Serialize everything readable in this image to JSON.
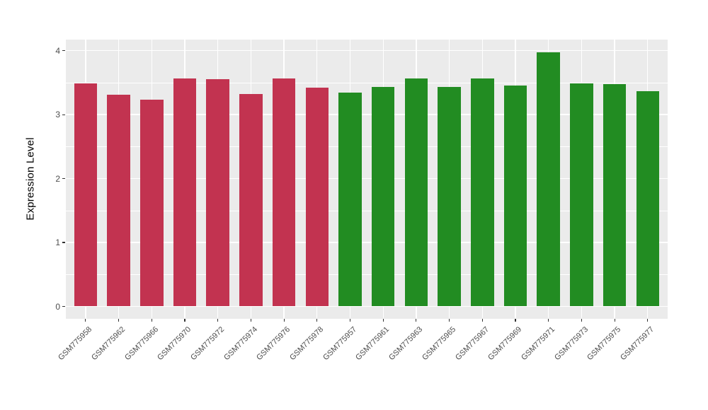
{
  "chart_data": {
    "type": "bar",
    "title": "",
    "xlabel": "",
    "ylabel": "Expression Level",
    "categories": [
      "GSM775958",
      "GSM775962",
      "GSM775966",
      "GSM775970",
      "GSM775972",
      "GSM775974",
      "GSM775976",
      "GSM775978",
      "GSM775957",
      "GSM775961",
      "GSM775963",
      "GSM775965",
      "GSM775967",
      "GSM775969",
      "GSM775971",
      "GSM775973",
      "GSM775975",
      "GSM775977"
    ],
    "values": [
      3.49,
      3.31,
      3.23,
      3.57,
      3.55,
      3.32,
      3.57,
      3.42,
      3.34,
      3.43,
      3.56,
      3.43,
      3.56,
      3.45,
      3.97,
      3.49,
      3.48,
      3.37
    ],
    "bar_colors": [
      "#C23350",
      "#C23350",
      "#C23350",
      "#C23350",
      "#C23350",
      "#C23350",
      "#C23350",
      "#C23350",
      "#228C22",
      "#228C22",
      "#228C22",
      "#228C22",
      "#228C22",
      "#228C22",
      "#228C22",
      "#228C22",
      "#228C22",
      "#228C22"
    ],
    "groups": [
      {
        "name": "red-group",
        "color": "#C23350",
        "count": 8
      },
      {
        "name": "green-group",
        "color": "#228C22",
        "count": 10
      }
    ],
    "yticks": [
      0,
      1,
      2,
      3,
      4
    ],
    "yticks_minor": [
      0.5,
      1.5,
      2.5,
      3.5
    ],
    "ylim": [
      0,
      4.17
    ],
    "legend": "none",
    "grid": "on",
    "panel_background": "#EBEBEB",
    "gridline_color": "#FFFFFF",
    "axis_text_color": "#4D4D4D"
  }
}
